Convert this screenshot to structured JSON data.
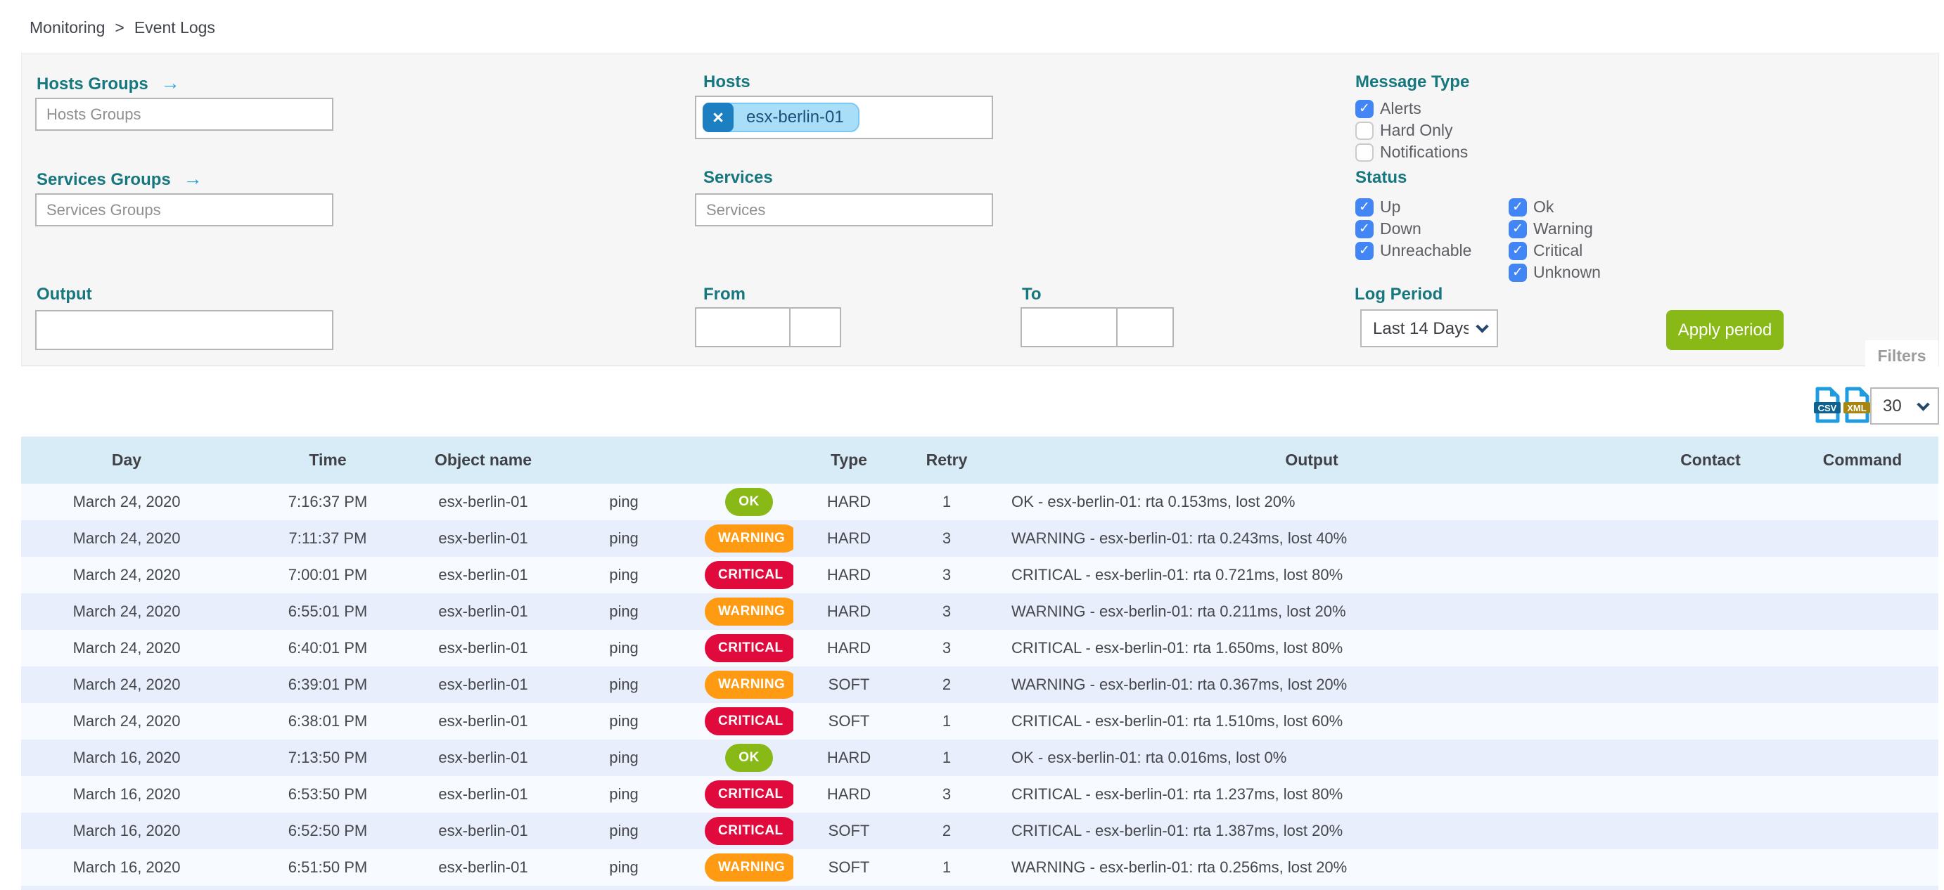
{
  "breadcrumb": {
    "monitoring": "Monitoring",
    "separator": ">",
    "current": "Event Logs"
  },
  "filters": {
    "tab_label": "Filters",
    "hosts_groups_label": "Hosts Groups",
    "hosts_groups_placeholder": "Hosts Groups",
    "services_groups_label": "Services Groups",
    "services_groups_placeholder": "Services Groups",
    "hosts_label": "Hosts",
    "hosts_selected": [
      "esx-berlin-01"
    ],
    "services_label": "Services",
    "services_placeholder": "Services",
    "output_label": "Output",
    "output_value": "",
    "from_label": "From",
    "from_date": "",
    "from_time": "",
    "to_label": "To",
    "to_date": "",
    "to_time": "",
    "message_type_label": "Message Type",
    "message_type_options": [
      {
        "label": "Alerts",
        "checked": true
      },
      {
        "label": "Hard Only",
        "checked": false
      },
      {
        "label": "Notifications",
        "checked": false
      }
    ],
    "status_label": "Status",
    "status_host_options": [
      {
        "label": "Up",
        "checked": true
      },
      {
        "label": "Down",
        "checked": true
      },
      {
        "label": "Unreachable",
        "checked": true
      }
    ],
    "status_service_options": [
      {
        "label": "Ok",
        "checked": true
      },
      {
        "label": "Warning",
        "checked": true
      },
      {
        "label": "Critical",
        "checked": true
      },
      {
        "label": "Unknown",
        "checked": true
      }
    ],
    "log_period_label": "Log Period",
    "log_period_value": "Last 14 Days",
    "apply_label": "Apply period"
  },
  "toolbar": {
    "csv_label": "CSV",
    "xml_label": "XML",
    "rows_per_page": "30"
  },
  "table": {
    "columns": [
      "Day",
      "Time",
      "Object name",
      "",
      "",
      "Type",
      "Retry",
      "Output",
      "Contact",
      "Command"
    ],
    "rows": [
      {
        "day": "March 24, 2020",
        "time": "7:16:37 PM",
        "object": "esx-berlin-01",
        "service": "ping",
        "status": "OK",
        "state_type": "HARD",
        "retry": "1",
        "output": "OK - esx-berlin-01: rta 0.153ms, lost 20%",
        "contact": "",
        "command": ""
      },
      {
        "day": "March 24, 2020",
        "time": "7:11:37 PM",
        "object": "esx-berlin-01",
        "service": "ping",
        "status": "WARNING",
        "state_type": "HARD",
        "retry": "3",
        "output": "WARNING - esx-berlin-01: rta 0.243ms, lost 40%",
        "contact": "",
        "command": ""
      },
      {
        "day": "March 24, 2020",
        "time": "7:00:01 PM",
        "object": "esx-berlin-01",
        "service": "ping",
        "status": "CRITICAL",
        "state_type": "HARD",
        "retry": "3",
        "output": "CRITICAL - esx-berlin-01: rta 0.721ms, lost 80%",
        "contact": "",
        "command": ""
      },
      {
        "day": "March 24, 2020",
        "time": "6:55:01 PM",
        "object": "esx-berlin-01",
        "service": "ping",
        "status": "WARNING",
        "state_type": "HARD",
        "retry": "3",
        "output": "WARNING - esx-berlin-01: rta 0.211ms, lost 20%",
        "contact": "",
        "command": ""
      },
      {
        "day": "March 24, 2020",
        "time": "6:40:01 PM",
        "object": "esx-berlin-01",
        "service": "ping",
        "status": "CRITICAL",
        "state_type": "HARD",
        "retry": "3",
        "output": "CRITICAL - esx-berlin-01: rta 1.650ms, lost 80%",
        "contact": "",
        "command": ""
      },
      {
        "day": "March 24, 2020",
        "time": "6:39:01 PM",
        "object": "esx-berlin-01",
        "service": "ping",
        "status": "WARNING",
        "state_type": "SOFT",
        "retry": "2",
        "output": "WARNING - esx-berlin-01: rta 0.367ms, lost 20%",
        "contact": "",
        "command": ""
      },
      {
        "day": "March 24, 2020",
        "time": "6:38:01 PM",
        "object": "esx-berlin-01",
        "service": "ping",
        "status": "CRITICAL",
        "state_type": "SOFT",
        "retry": "1",
        "output": "CRITICAL - esx-berlin-01: rta 1.510ms, lost 60%",
        "contact": "",
        "command": ""
      },
      {
        "day": "March 16, 2020",
        "time": "7:13:50 PM",
        "object": "esx-berlin-01",
        "service": "ping",
        "status": "OK",
        "state_type": "HARD",
        "retry": "1",
        "output": "OK - esx-berlin-01: rta 0.016ms, lost 0%",
        "contact": "",
        "command": ""
      },
      {
        "day": "March 16, 2020",
        "time": "6:53:50 PM",
        "object": "esx-berlin-01",
        "service": "ping",
        "status": "CRITICAL",
        "state_type": "HARD",
        "retry": "3",
        "output": "CRITICAL - esx-berlin-01: rta 1.237ms, lost 80%",
        "contact": "",
        "command": ""
      },
      {
        "day": "March 16, 2020",
        "time": "6:52:50 PM",
        "object": "esx-berlin-01",
        "service": "ping",
        "status": "CRITICAL",
        "state_type": "SOFT",
        "retry": "2",
        "output": "CRITICAL - esx-berlin-01: rta 1.387ms, lost 20%",
        "contact": "",
        "command": ""
      },
      {
        "day": "March 16, 2020",
        "time": "6:51:50 PM",
        "object": "esx-berlin-01",
        "service": "ping",
        "status": "WARNING",
        "state_type": "SOFT",
        "retry": "1",
        "output": "WARNING - esx-berlin-01: rta 0.256ms, lost 20%",
        "contact": "",
        "command": ""
      }
    ]
  },
  "colors": {
    "accent_teal": "#17777e",
    "link_blue": "#2d9cdb",
    "checkbox_blue": "#4285f4",
    "ok_green": "#88b917",
    "warning_orange": "#ff9a13",
    "critical_red": "#e00b3c",
    "table_header_bg": "#d8ecf7",
    "row_alt_bg": "#e8eefb",
    "panel_bg": "#f6f6f7"
  }
}
